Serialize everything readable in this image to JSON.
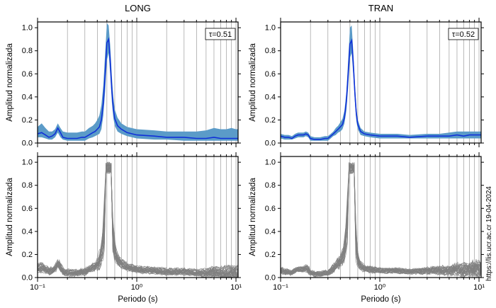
{
  "chart_data": [
    {
      "id": "long-mean",
      "type": "area",
      "title": "LONG",
      "ylabel": "Amplitud normalizada",
      "xlabel": "",
      "annotation": "τ=0.51",
      "xscale": "log",
      "xlim": [
        0.1,
        10.5
      ],
      "ylim": [
        0,
        1.05
      ],
      "yticks": [
        "0.0",
        "0.2",
        "0.4",
        "0.6",
        "0.8",
        "1.0"
      ],
      "series": [
        {
          "x": [
            0.1,
            0.11,
            0.12,
            0.13,
            0.14,
            0.15,
            0.16,
            0.17,
            0.18,
            0.2,
            0.22,
            0.25,
            0.28,
            0.3,
            0.33,
            0.36,
            0.38,
            0.4,
            0.42,
            0.44,
            0.46,
            0.48,
            0.5,
            0.52,
            0.54,
            0.56,
            0.58,
            0.6,
            0.64,
            0.7,
            0.8,
            1.0,
            1.5,
            2.0,
            3.0,
            4.0,
            5.0,
            6.0,
            7.0,
            8.0,
            9.0,
            10.0,
            10.5
          ],
          "mean": [
            0.08,
            0.09,
            0.07,
            0.05,
            0.06,
            0.08,
            0.13,
            0.09,
            0.05,
            0.04,
            0.04,
            0.04,
            0.05,
            0.05,
            0.07,
            0.09,
            0.1,
            0.12,
            0.14,
            0.2,
            0.35,
            0.6,
            0.87,
            0.9,
            0.72,
            0.46,
            0.3,
            0.21,
            0.15,
            0.12,
            0.09,
            0.07,
            0.06,
            0.05,
            0.05,
            0.04,
            0.04,
            0.05,
            0.04,
            0.04,
            0.04,
            0.04,
            0.04
          ],
          "upper": [
            0.14,
            0.17,
            0.13,
            0.1,
            0.1,
            0.12,
            0.17,
            0.13,
            0.1,
            0.09,
            0.09,
            0.09,
            0.1,
            0.1,
            0.13,
            0.15,
            0.17,
            0.2,
            0.24,
            0.33,
            0.5,
            0.78,
            1.04,
            1.02,
            0.85,
            0.58,
            0.4,
            0.29,
            0.22,
            0.17,
            0.14,
            0.12,
            0.11,
            0.1,
            0.1,
            0.1,
            0.11,
            0.13,
            0.12,
            0.12,
            0.13,
            0.12,
            0.12
          ],
          "lower": [
            0.05,
            0.05,
            0.04,
            0.03,
            0.03,
            0.05,
            0.09,
            0.05,
            0.03,
            0.02,
            0.02,
            0.02,
            0.02,
            0.02,
            0.04,
            0.05,
            0.06,
            0.07,
            0.08,
            0.12,
            0.24,
            0.45,
            0.72,
            0.78,
            0.6,
            0.36,
            0.22,
            0.15,
            0.1,
            0.08,
            0.06,
            0.04,
            0.03,
            0.03,
            0.02,
            0.02,
            0.02,
            0.02,
            0.02,
            0.02,
            0.02,
            0.02,
            0.02
          ]
        }
      ]
    },
    {
      "id": "tran-mean",
      "type": "area",
      "title": "TRAN",
      "ylabel": "Amplitud normalizada",
      "xlabel": "",
      "annotation": "τ=0.52",
      "xscale": "log",
      "xlim": [
        0.1,
        10.5
      ],
      "ylim": [
        0,
        1.05
      ],
      "yticks": [
        "0.0",
        "0.2",
        "0.4",
        "0.6",
        "0.8",
        "1.0"
      ],
      "series": [
        {
          "x": [
            0.1,
            0.11,
            0.12,
            0.13,
            0.14,
            0.15,
            0.16,
            0.17,
            0.18,
            0.19,
            0.2,
            0.22,
            0.25,
            0.28,
            0.3,
            0.32,
            0.34,
            0.36,
            0.38,
            0.4,
            0.42,
            0.44,
            0.46,
            0.48,
            0.5,
            0.52,
            0.54,
            0.56,
            0.58,
            0.6,
            0.64,
            0.7,
            0.8,
            1.0,
            1.5,
            2.0,
            3.0,
            4.0,
            5.0,
            6.0,
            7.0,
            8.0,
            9.0,
            10.0,
            10.5
          ],
          "mean": [
            0.06,
            0.05,
            0.05,
            0.04,
            0.06,
            0.07,
            0.07,
            0.07,
            0.08,
            0.07,
            0.04,
            0.03,
            0.03,
            0.04,
            0.04,
            0.06,
            0.08,
            0.1,
            0.12,
            0.14,
            0.16,
            0.22,
            0.36,
            0.6,
            0.86,
            0.89,
            0.7,
            0.44,
            0.25,
            0.16,
            0.1,
            0.08,
            0.07,
            0.06,
            0.06,
            0.05,
            0.06,
            0.06,
            0.06,
            0.07,
            0.06,
            0.07,
            0.07,
            0.07,
            0.07
          ],
          "upper": [
            0.08,
            0.07,
            0.07,
            0.06,
            0.08,
            0.09,
            0.09,
            0.09,
            0.1,
            0.09,
            0.06,
            0.05,
            0.05,
            0.06,
            0.06,
            0.08,
            0.1,
            0.13,
            0.15,
            0.18,
            0.21,
            0.28,
            0.44,
            0.72,
            1.0,
            1.02,
            0.8,
            0.52,
            0.31,
            0.2,
            0.13,
            0.1,
            0.09,
            0.08,
            0.08,
            0.07,
            0.08,
            0.08,
            0.09,
            0.1,
            0.1,
            0.1,
            0.1,
            0.1,
            0.1
          ],
          "lower": [
            0.04,
            0.03,
            0.03,
            0.03,
            0.04,
            0.05,
            0.05,
            0.05,
            0.06,
            0.05,
            0.02,
            0.02,
            0.02,
            0.02,
            0.02,
            0.04,
            0.06,
            0.07,
            0.09,
            0.1,
            0.12,
            0.17,
            0.28,
            0.49,
            0.74,
            0.78,
            0.6,
            0.36,
            0.19,
            0.12,
            0.07,
            0.06,
            0.05,
            0.04,
            0.04,
            0.04,
            0.04,
            0.04,
            0.04,
            0.04,
            0.04,
            0.04,
            0.04,
            0.04,
            0.04
          ]
        }
      ]
    },
    {
      "id": "long-all",
      "type": "line",
      "title": "",
      "ylabel": "Amplitud normalizada",
      "xlabel": "Periodo (s)",
      "xscale": "log",
      "xlim": [
        0.1,
        10.5
      ],
      "ylim": [
        0,
        1.05
      ],
      "yticks": [
        "0.0",
        "0.2",
        "0.4",
        "0.6",
        "0.8",
        "1.0"
      ],
      "xticks": [
        "10⁻¹",
        "10⁰",
        "10¹"
      ],
      "curve_count": 30,
      "envelope": {
        "x": [
          0.1,
          0.11,
          0.12,
          0.13,
          0.14,
          0.15,
          0.16,
          0.17,
          0.18,
          0.2,
          0.22,
          0.25,
          0.28,
          0.3,
          0.33,
          0.36,
          0.38,
          0.4,
          0.42,
          0.44,
          0.46,
          0.48,
          0.5,
          0.52,
          0.54,
          0.56,
          0.58,
          0.6,
          0.64,
          0.7,
          0.8,
          1.0,
          1.5,
          2.0,
          3.0,
          4.0,
          5.0,
          6.0,
          7.0,
          8.0,
          9.0,
          10.0,
          10.5
        ],
        "mean": [
          0.08,
          0.09,
          0.07,
          0.05,
          0.06,
          0.08,
          0.13,
          0.09,
          0.05,
          0.04,
          0.04,
          0.04,
          0.05,
          0.05,
          0.07,
          0.09,
          0.1,
          0.12,
          0.14,
          0.2,
          0.35,
          0.6,
          0.87,
          0.9,
          0.72,
          0.46,
          0.3,
          0.21,
          0.15,
          0.12,
          0.09,
          0.07,
          0.06,
          0.05,
          0.05,
          0.04,
          0.04,
          0.05,
          0.04,
          0.04,
          0.04,
          0.04,
          0.04
        ],
        "spread": [
          0.05,
          0.06,
          0.05,
          0.04,
          0.04,
          0.04,
          0.04,
          0.04,
          0.04,
          0.04,
          0.04,
          0.04,
          0.04,
          0.04,
          0.04,
          0.05,
          0.06,
          0.07,
          0.09,
          0.12,
          0.15,
          0.2,
          0.18,
          0.14,
          0.15,
          0.13,
          0.1,
          0.08,
          0.06,
          0.05,
          0.04,
          0.04,
          0.04,
          0.04,
          0.04,
          0.04,
          0.05,
          0.06,
          0.07,
          0.08,
          0.09,
          0.08,
          0.08
        ]
      }
    },
    {
      "id": "tran-all",
      "type": "line",
      "title": "",
      "ylabel": "Amplitud normalizada",
      "xlabel": "Periodo (s)",
      "xscale": "log",
      "xlim": [
        0.1,
        10.5
      ],
      "ylim": [
        0,
        1.05
      ],
      "yticks": [
        "0.0",
        "0.2",
        "0.4",
        "0.6",
        "0.8",
        "1.0"
      ],
      "xticks": [
        "10⁻¹",
        "10⁰",
        "10¹"
      ],
      "curve_count": 30,
      "envelope": {
        "x": [
          0.1,
          0.11,
          0.12,
          0.13,
          0.14,
          0.15,
          0.16,
          0.17,
          0.18,
          0.19,
          0.2,
          0.22,
          0.25,
          0.28,
          0.3,
          0.32,
          0.34,
          0.36,
          0.38,
          0.4,
          0.42,
          0.44,
          0.46,
          0.48,
          0.5,
          0.52,
          0.54,
          0.56,
          0.58,
          0.6,
          0.64,
          0.7,
          0.8,
          1.0,
          1.5,
          2.0,
          3.0,
          4.0,
          5.0,
          6.0,
          7.0,
          8.0,
          9.0,
          10.0,
          10.5
        ],
        "mean": [
          0.06,
          0.05,
          0.05,
          0.04,
          0.06,
          0.07,
          0.07,
          0.07,
          0.08,
          0.07,
          0.04,
          0.03,
          0.03,
          0.04,
          0.04,
          0.06,
          0.08,
          0.1,
          0.12,
          0.14,
          0.16,
          0.22,
          0.36,
          0.6,
          0.86,
          0.89,
          0.7,
          0.44,
          0.25,
          0.16,
          0.1,
          0.08,
          0.07,
          0.06,
          0.06,
          0.05,
          0.06,
          0.06,
          0.06,
          0.07,
          0.06,
          0.07,
          0.07,
          0.07,
          0.07
        ],
        "spread": [
          0.04,
          0.04,
          0.03,
          0.03,
          0.03,
          0.03,
          0.03,
          0.03,
          0.04,
          0.04,
          0.03,
          0.03,
          0.03,
          0.03,
          0.03,
          0.04,
          0.05,
          0.06,
          0.07,
          0.08,
          0.1,
          0.13,
          0.16,
          0.2,
          0.16,
          0.12,
          0.13,
          0.12,
          0.09,
          0.06,
          0.05,
          0.04,
          0.04,
          0.03,
          0.03,
          0.03,
          0.04,
          0.05,
          0.06,
          0.07,
          0.08,
          0.09,
          0.1,
          0.1,
          0.1
        ]
      }
    }
  ],
  "reference_lines": [
    0.2,
    0.3,
    0.4,
    0.5,
    0.6,
    0.7,
    0.8,
    0.9,
    1,
    2,
    3,
    4,
    5,
    6,
    7,
    8,
    9,
    10
  ],
  "watermark": "https://lis.ucr.ac.cr 19-04-2024",
  "colors": {
    "band": "#5b9bc8",
    "mean_line": "#1030d8",
    "curves": "#808080",
    "gridline": "#8c8c8c",
    "frame": "#000000"
  }
}
